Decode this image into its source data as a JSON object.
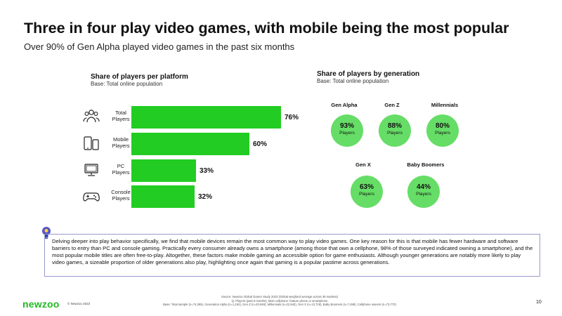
{
  "slide": {
    "title": "Three in four play video games, with mobile being the most popular",
    "subtitle": "Over 90% of Gen Alpha played video games in the past six months"
  },
  "chart_data": [
    {
      "type": "bar",
      "orientation": "horizontal",
      "title": "Share of players per platform",
      "subtitle": "Base: Total online population",
      "categories": [
        "Total\nPlayers",
        "Mobile\nPlayers",
        "PC\nPlayers",
        "Console\nPlayers"
      ],
      "values": [
        76,
        60,
        33,
        32
      ],
      "value_labels": [
        "76%",
        "60%",
        "33%",
        "32%"
      ],
      "xlim": [
        0,
        100
      ],
      "color": "#22cc22",
      "icons": [
        "people-icon",
        "mobile-tablet-icon",
        "pc-icon",
        "gamepad-icon"
      ]
    },
    {
      "type": "bubble",
      "title": "Share of players by generation",
      "subtitle": "Base: Total online population",
      "categories": [
        "Gen Alpha",
        "Gen Z",
        "Millennials",
        "Gen X",
        "Baby Boomers"
      ],
      "values": [
        93,
        88,
        80,
        63,
        44
      ],
      "value_labels": [
        "93%",
        "88%",
        "80%",
        "63%",
        "44%"
      ],
      "unit_label": "Players",
      "color": "#66dd66"
    }
  ],
  "insight": {
    "text": "Delving deeper into play behavior specifically, we find that mobile devices remain the most common way to play video games. One key reason for this is that mobile has fewer hardware and software barriers to entry than PC and console gaming. Practically every consumer already owns a smartphone (among those that own a cellphone, 98% of those surveyed indicated owning a smartphone), and the most popular mobile titles are often free-to-play. Altogether, these factors make mobile gaming an accessible option for game enthusiasts.  Although younger generations are notably more likely to play video games, a sizeable proportion of older generations also play, highlighting once again that gaming is a popular pastime across generations.",
    "icon": "lightbulb-icon"
  },
  "footer": {
    "logo": "newzoo",
    "copyright": "© Newzoo 2023",
    "source_lines": [
      "Source: Newzoo Global Gamer Study 2023 (Global weighted average across 36 markets)",
      "Q. Players (past 6 months); Main cellphone: feature phone or smartphone",
      "Base: Total sample (n=74,295), Generation Alpha (n=1,192), Gen Z (n=20,848), Millennials (n=22,942), Gen X (n=13,716), Baby Boomers (n=7,498), Cellphone owners (n=73,770)"
    ],
    "page_number": "10",
    "brand_color": "#22b822"
  }
}
